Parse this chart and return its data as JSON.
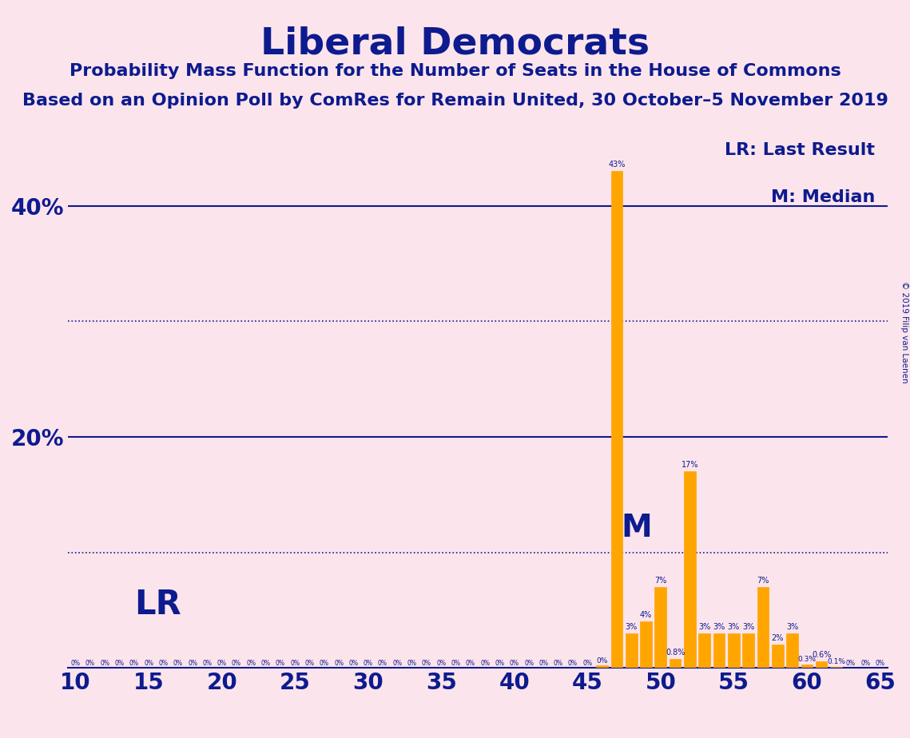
{
  "title": "Liberal Democrats",
  "subtitle1": "Probability Mass Function for the Number of Seats in the House of Commons",
  "subtitle2": "Based on an Opinion Poll by ComRes for Remain United, 30 October–5 November 2019",
  "copyright": "© 2019 Filip van Laenen",
  "legend_lr": "LR: Last Result",
  "legend_m": "M: Median",
  "lr_label": "LR",
  "m_label": "M",
  "lr_seat": 12,
  "median_seat": 48,
  "x_min": 10,
  "x_max": 65,
  "y_min": 0,
  "y_max": 0.46,
  "background_color": "#fce4ec",
  "bar_color": "#FFA500",
  "text_color": "#0d1b8e",
  "bar_edge_color": "#FFA500",
  "seats": [
    10,
    11,
    12,
    13,
    14,
    15,
    16,
    17,
    18,
    19,
    20,
    21,
    22,
    23,
    24,
    25,
    26,
    27,
    28,
    29,
    30,
    31,
    32,
    33,
    34,
    35,
    36,
    37,
    38,
    39,
    40,
    41,
    42,
    43,
    44,
    45,
    46,
    47,
    48,
    49,
    50,
    51,
    52,
    53,
    54,
    55,
    56,
    57,
    58,
    59,
    60,
    61,
    62,
    63,
    64,
    65
  ],
  "probs": [
    0,
    0,
    0,
    0,
    0,
    0,
    0,
    0,
    0,
    0,
    0,
    0,
    0,
    0,
    0,
    0,
    0,
    0,
    0,
    0,
    0,
    0,
    0,
    0,
    0,
    0,
    0,
    0,
    0,
    0,
    0,
    0,
    0,
    0,
    0,
    0,
    0.002,
    0.43,
    0.03,
    0.04,
    0.07,
    0.008,
    0.17,
    0.03,
    0.03,
    0.03,
    0.03,
    0.07,
    0.02,
    0.03,
    0.003,
    0.006,
    0.001,
    0,
    0,
    0
  ],
  "bar_labels": [
    "0%",
    "0%",
    "0%",
    "0%",
    "0%",
    "0%",
    "0%",
    "0%",
    "0%",
    "0%",
    "0%",
    "0%",
    "0%",
    "0%",
    "0%",
    "0%",
    "0%",
    "0%",
    "0%",
    "0%",
    "0%",
    "0%",
    "0%",
    "0%",
    "0%",
    "0%",
    "0%",
    "0%",
    "0%",
    "0%",
    "0%",
    "0%",
    "0%",
    "0%",
    "0%",
    "0%",
    "0%",
    "43%",
    "3%",
    "4%",
    "7%",
    "0.8%",
    "17%",
    "3%",
    "3%",
    "3%",
    "3%",
    "7%",
    "2%",
    "3%",
    "0.3%",
    "0.6%",
    "0.1%",
    "0%",
    "0%",
    "0%"
  ],
  "solid_gridlines": [
    0.2,
    0.4
  ],
  "dotted_gridlines": [
    0.1,
    0.3
  ],
  "figsize": [
    11.39,
    9.24
  ],
  "dpi": 100
}
